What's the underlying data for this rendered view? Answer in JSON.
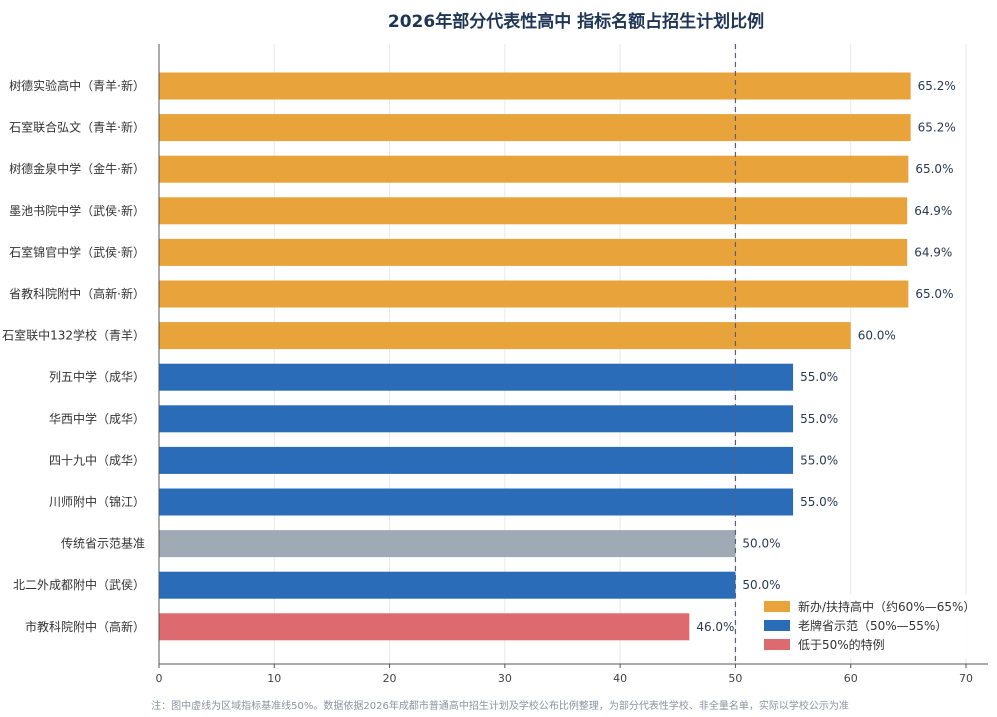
{
  "chart_data": {
    "type": "bar",
    "orientation": "horizontal",
    "title": "2026年部分代表性高中 指标名额占招生计划比例",
    "xlim": [
      0,
      70
    ],
    "xticks": [
      0,
      10,
      20,
      30,
      40,
      50,
      60,
      70
    ],
    "grid": "vertical",
    "reference_line": {
      "value": 50,
      "style": "dashed"
    },
    "value_suffix": "%",
    "categories": [
      "树德实验高中（青羊·新）",
      "石室联合弘文（青羊·新）",
      "树德金泉中学（金牛·新）",
      "墨池书院中学（武侯·新）",
      "石室锦官中学（武侯·新）",
      "省教科院附中（高新·新）",
      "石室联中132学校（青羊）",
      "列五中学（成华）",
      "华西中学（成华）",
      "四十九中（成华）",
      "川师附中（锦江）",
      "传统省示范基准",
      "北二外成都附中（武侯）",
      "市教科院附中（高新）"
    ],
    "values": [
      65.2,
      65.2,
      65.0,
      64.9,
      64.9,
      65.0,
      60.0,
      55.0,
      55.0,
      55.0,
      55.0,
      50.0,
      50.0,
      46.0
    ],
    "data_labels": [
      "65.2%",
      "65.2%",
      "65.0%",
      "64.9%",
      "64.9%",
      "65.0%",
      "60.0%",
      "55.0%",
      "55.0%",
      "55.0%",
      "55.0%",
      "50.0%",
      "50.0%",
      "46.0%"
    ],
    "groups": [
      "new",
      "new",
      "new",
      "new",
      "new",
      "new",
      "new",
      "old",
      "old",
      "old",
      "old",
      "baseline",
      "old",
      "exception"
    ],
    "group_colors": {
      "new": "#E8A33A",
      "old": "#2B6CB8",
      "baseline": "#9FAAB5",
      "exception": "#DC6A6E"
    },
    "legend": {
      "position": "bottom-right",
      "items": [
        {
          "label": "新办/扶持高中（约60%—65%）",
          "color": "#E8A33A"
        },
        {
          "label": "老牌省示范（50%—55%）",
          "color": "#2B6CB8"
        },
        {
          "label": "低于50%的特例",
          "color": "#DC6A6E"
        }
      ]
    },
    "footnote": "注：图中虚线为区域指标基准线50%。数据依据2026年成都市普通高中招生计划及学校公布比例整理，为部分代表性学校、非全量名单，实际以学校公示为准"
  }
}
